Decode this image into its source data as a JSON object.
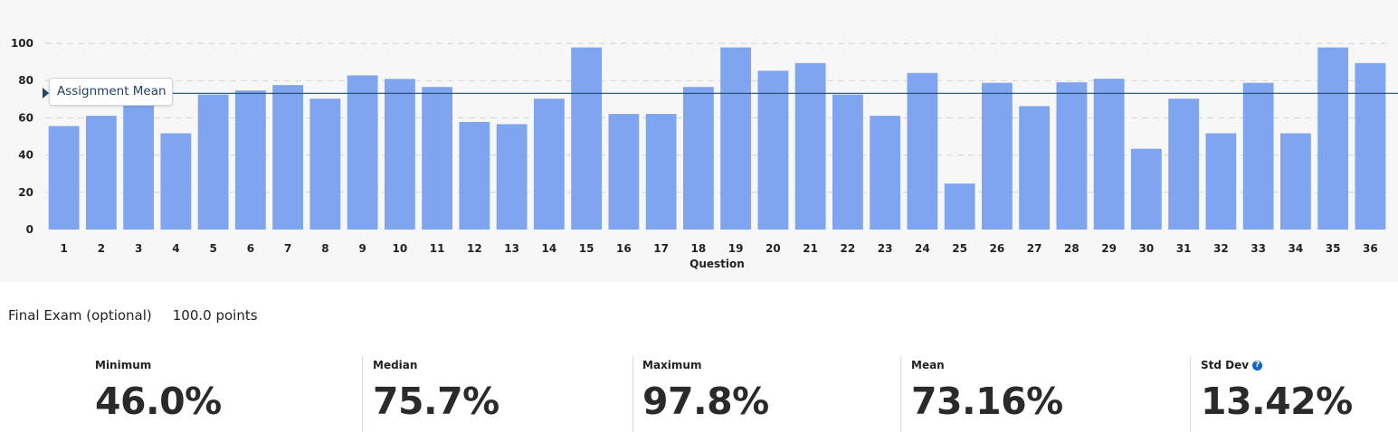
{
  "chart_data": {
    "type": "bar",
    "categories": [
      "1",
      "2",
      "3",
      "4",
      "5",
      "6",
      "7",
      "8",
      "9",
      "10",
      "11",
      "12",
      "13",
      "14",
      "15",
      "16",
      "17",
      "18",
      "19",
      "20",
      "21",
      "22",
      "23",
      "24",
      "25",
      "26",
      "27",
      "28",
      "29",
      "30",
      "31",
      "32",
      "33",
      "34",
      "35",
      "36"
    ],
    "values": [
      55.6,
      61.1,
      66.7,
      51.7,
      72.5,
      74.7,
      77.6,
      70.3,
      82.8,
      80.9,
      76.6,
      57.8,
      56.6,
      70.3,
      97.8,
      62.1,
      62.1,
      76.6,
      97.8,
      85.3,
      89.4,
      72.5,
      61.1,
      84.1,
      24.7,
      78.8,
      66.3,
      79.1,
      81.0,
      43.4,
      70.3,
      51.7,
      78.8,
      51.7,
      97.8,
      89.4
    ],
    "xlabel": "Question",
    "ylabel": "",
    "ylim": [
      0,
      100
    ],
    "yticks": [
      0,
      20,
      40,
      60,
      80,
      100
    ],
    "grid": true,
    "bar_color": "#7fa5f0",
    "mean_line": {
      "label": "Assignment Mean",
      "value": 73.16,
      "color": "#1f4a6e"
    }
  },
  "assignment": {
    "name": "Final Exam (optional)",
    "points": "100.0 points"
  },
  "stats": [
    {
      "label": "Minimum",
      "value": "46.0%"
    },
    {
      "label": "Median",
      "value": "75.7%"
    },
    {
      "label": "Maximum",
      "value": "97.8%"
    },
    {
      "label": "Mean",
      "value": "73.16%"
    },
    {
      "label": "Std Dev",
      "value": "13.42%",
      "help_icon": "question-circle-icon"
    }
  ]
}
